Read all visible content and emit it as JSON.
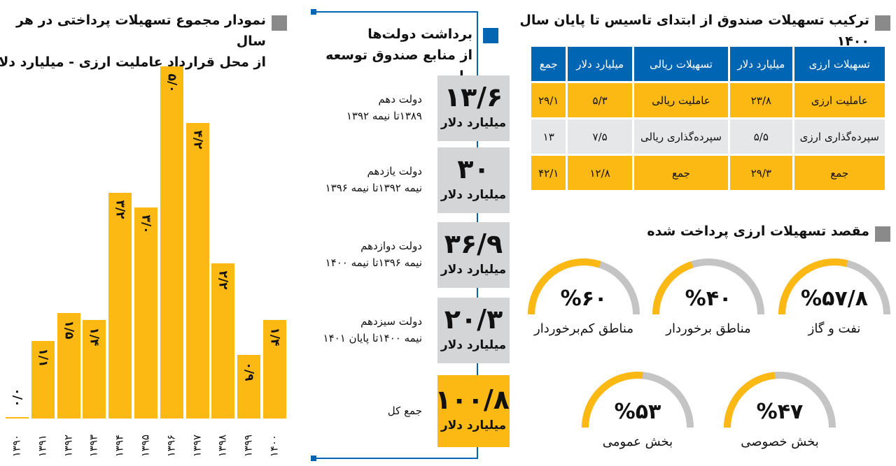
{
  "colors": {
    "accent": "#fdb913",
    "blue": "#0066b3",
    "gray_box": "#d4d5d6",
    "gauge_rest": "#c4c4c4"
  },
  "chart_data": {
    "type": "bar",
    "title": "نمودار مجموع تسهیلات پرداختی در هر سال از محل قرارداد عاملیت ارزی - میلیارد دلار",
    "categories": [
      "۱۳۹۰",
      "۱۳۹۱",
      "۱۳۹۲",
      "۱۳۹۳",
      "۱۳۹۴",
      "۱۳۹۵",
      "۱۳۹۶",
      "۱۳۹۷",
      "۱۳۹۸",
      "۱۳۹۹",
      "۱۴۰۰"
    ],
    "values": [
      0.0,
      1.1,
      1.5,
      1.4,
      3.2,
      3.0,
      5.0,
      4.2,
      2.2,
      0.9,
      1.4
    ],
    "labels": [
      "۰/۰",
      "۱/۱",
      "۱/۵",
      "۱/۴",
      "۳/۲",
      "۳/۰",
      "۵/۰",
      "۴/۲",
      "۲/۲",
      "۰/۹",
      "۱/۴"
    ],
    "ylim": [
      0,
      5
    ],
    "grid": false
  },
  "chart_title": {
    "line1": "نمودار مجموع تسهیلات پرداختی در هر سال",
    "line2": "از محل قرارداد عاملیت ارزی - میلیارد دلار"
  },
  "govs": {
    "title1": "برداشت دولت‌ها",
    "title2": "از منابع صندوق توسعه ملی",
    "items": [
      {
        "name": "دولت دهم",
        "period": "۱۳۸۹تا نیمه ۱۳۹۲",
        "value": "۱۳/۶",
        "unit": "میلیارد دلار"
      },
      {
        "name": "دولت یازدهم",
        "period": "نیمه ۱۳۹۲تا نیمه ۱۳۹۶",
        "value": "۳۰",
        "unit": "میلیارد دلار"
      },
      {
        "name": "دولت دوازدهم",
        "period": "نیمه ۱۳۹۶تا نیمه ۱۴۰۰",
        "value": "۳۶/۹",
        "unit": "میلیارد دلار"
      },
      {
        "name": "دولت سیزدهم",
        "period": "نیمه ۱۴۰۰تا پایان ۱۴۰۱",
        "value": "۲۰/۳",
        "unit": "میلیارد دلار"
      }
    ],
    "total": {
      "name": "جمع کل",
      "value": "۱۰۰/۸",
      "unit": "میلیارد دلار"
    }
  },
  "table": {
    "title": "ترکیب تسهیلات صندوق از ابتدای تاسیس تا پایان سال ۱۴۰۰",
    "header": [
      "تسهیلات ارزی",
      "میلیارد دلار",
      "تسهیلات ریالی",
      "میلیارد دلار",
      "جمع"
    ],
    "rows": [
      [
        "عاملیت ارزی",
        "۲۳/۸",
        "عاملیت ریالی",
        "۵/۳",
        "۲۹/۱"
      ],
      [
        "سپرده‌گذاری ارزی",
        "۵/۵",
        "سپرده‌گذاری ریالی",
        "۷/۵",
        "۱۳"
      ],
      [
        "جمع",
        "۲۹/۳",
        "جمع",
        "۱۲/۸",
        "۴۲/۱"
      ]
    ]
  },
  "gauges": {
    "title": "مقصد تسهیلات ارزی پرداخت شده",
    "items": [
      {
        "label": "نفت و گاز",
        "pct_text": "%۵۷/۸",
        "value": 57.8
      },
      {
        "label": "مناطق برخوردار",
        "pct_text": "%۴۰",
        "value": 40
      },
      {
        "label": "مناطق کم‌برخوردار",
        "pct_text": "%۶۰",
        "value": 60
      },
      {
        "label": "بخش خصوصی",
        "pct_text": "%۴۷",
        "value": 47
      },
      {
        "label": "بخش عمومی",
        "pct_text": "%۵۳",
        "value": 53
      }
    ]
  }
}
